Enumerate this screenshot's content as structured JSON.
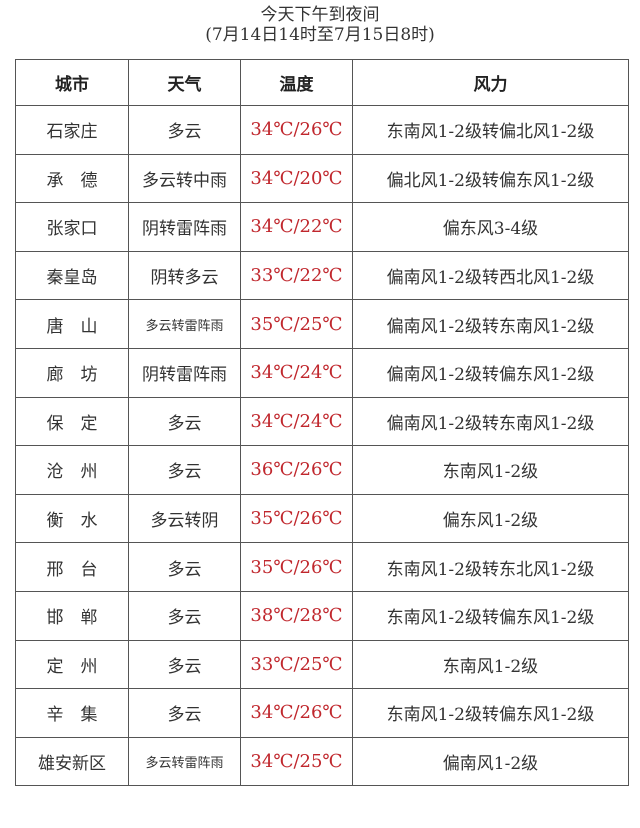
{
  "title": "今天下午到夜间",
  "subtitle": "(7月14日14时至7月15日8时)",
  "colors": {
    "temperature": "#c0272d",
    "text": "#333333"
  },
  "headers": [
    "城市",
    "天气",
    "温度",
    "风力"
  ],
  "rows": [
    {
      "city": "石家庄",
      "weather": "多云",
      "temp": "34℃/26℃",
      "wind": "东南风1-2级转偏北风1-2级"
    },
    {
      "city": "承　德",
      "weather": "多云转中雨",
      "temp": "34℃/20℃",
      "wind": "偏北风1-2级转偏东风1-2级"
    },
    {
      "city": "张家口",
      "weather": "阴转雷阵雨",
      "temp": "34℃/22℃",
      "wind": "偏东风3-4级"
    },
    {
      "city": "秦皇岛",
      "weather": "阴转多云",
      "temp": "33℃/22℃",
      "wind": "偏南风1-2级转西北风1-2级"
    },
    {
      "city": "唐　山",
      "weather": "多云转雷阵雨",
      "temp": "35℃/25℃",
      "wind": "偏南风1-2级转东南风1-2级"
    },
    {
      "city": "廊　坊",
      "weather": "阴转雷阵雨",
      "temp": "34℃/24℃",
      "wind": "偏南风1-2级转偏东风1-2级"
    },
    {
      "city": "保　定",
      "weather": "多云",
      "temp": "34℃/24℃",
      "wind": "偏南风1-2级转东南风1-2级"
    },
    {
      "city": "沧　州",
      "weather": "多云",
      "temp": "36℃/26℃",
      "wind": "东南风1-2级"
    },
    {
      "city": "衡　水",
      "weather": "多云转阴",
      "temp": "35℃/26℃",
      "wind": "偏东风1-2级"
    },
    {
      "city": "邢　台",
      "weather": "多云",
      "temp": "35℃/26℃",
      "wind": "东南风1-2级转东北风1-2级"
    },
    {
      "city": "邯　郸",
      "weather": "多云",
      "temp": "38℃/28℃",
      "wind": "东南风1-2级转偏东风1-2级"
    },
    {
      "city": "定　州",
      "weather": "多云",
      "temp": "33℃/25℃",
      "wind": "东南风1-2级"
    },
    {
      "city": "辛　集",
      "weather": "多云",
      "temp": "34℃/26℃",
      "wind": "东南风1-2级转偏东风1-2级"
    },
    {
      "city": "雄安新区",
      "weather": "多云转雷阵雨",
      "temp": "34℃/25℃",
      "wind": "偏南风1-2级"
    }
  ]
}
